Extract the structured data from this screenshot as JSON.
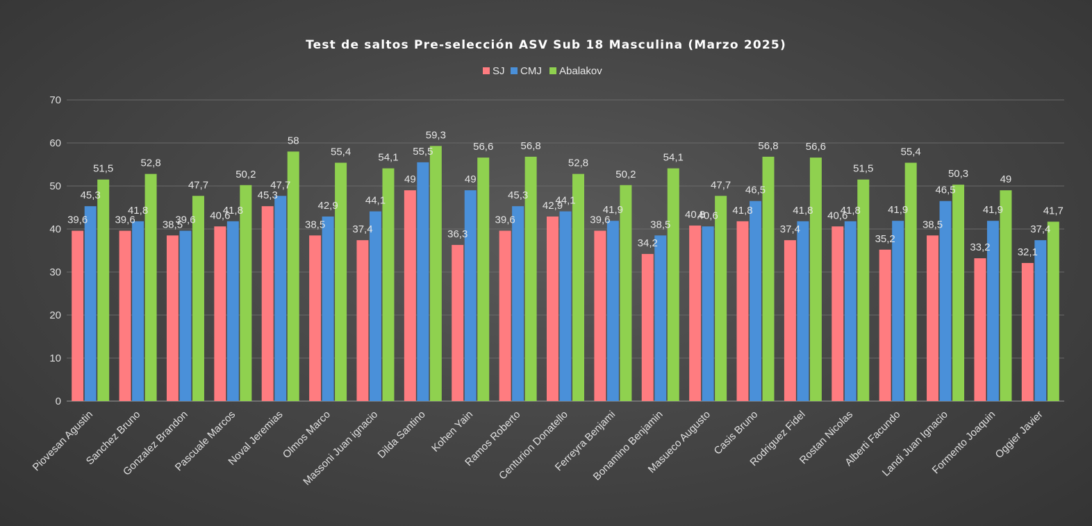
{
  "chart_data": {
    "type": "bar",
    "title": "Test de saltos Pre-selección ASV Sub 18 Masculina (Marzo 2025)",
    "xlabel": "",
    "ylabel": "",
    "ylim": [
      0,
      70
    ],
    "yticks": [
      0,
      10,
      20,
      30,
      40,
      50,
      60,
      70
    ],
    "grid": true,
    "legend_position": "top",
    "categories": [
      "Piovesan Agustin",
      "Sanchez Bruno",
      "Gonzalez Brandon",
      "Pascuale Marcos",
      "Noval Jeremias",
      "Olmos Marco",
      "Massoni Juan ignacio",
      "Dilda Santino",
      "Kohen Yain",
      "Ramos Roberto",
      "Centurion Donatello",
      "Ferreyra Benjami",
      "Bonamino Benjamin",
      "Masueco Augusto",
      "Casis Bruno",
      "Rodriguez Fidel",
      "Rostan Nicolas",
      "Alberti Facundo",
      "Landi Juan Ignacio",
      "Formento Joaquin",
      "Oggier Javier"
    ],
    "series": [
      {
        "name": "SJ",
        "color": "#ff7c80",
        "values": [
          39.6,
          39.6,
          38.5,
          40.6,
          45.3,
          38.5,
          37.4,
          49,
          36.3,
          39.6,
          42.9,
          39.6,
          34.2,
          40.8,
          41.8,
          37.4,
          40.6,
          35.2,
          38.5,
          33.2,
          32.1
        ],
        "labels": [
          "39,6",
          "39,6",
          "38,5",
          "40,6",
          "45,3",
          "38,5",
          "37,4",
          "49",
          "36,3",
          "39,6",
          "42,9",
          "39,6",
          "34,2",
          "40,8",
          "41,8",
          "37,4",
          "40,6",
          "35,2",
          "38,5",
          "33,2",
          "32,1"
        ]
      },
      {
        "name": "CMJ",
        "color": "#4a90d9",
        "values": [
          45.3,
          41.8,
          39.6,
          41.8,
          47.7,
          42.9,
          44.1,
          55.5,
          49,
          45.3,
          44.1,
          41.9,
          38.5,
          40.6,
          46.5,
          41.8,
          41.8,
          41.9,
          46.5,
          41.9,
          37.4
        ],
        "labels": [
          "45,3",
          "41,8",
          "39,6",
          "41,8",
          "47,7",
          "42,9",
          "44,1",
          "55,5",
          "49",
          "45,3",
          "44,1",
          "41,9",
          "38,5",
          "40,6",
          "46,5",
          "41,8",
          "41,8",
          "41,9",
          "46,5",
          "41,9",
          "37,4"
        ]
      },
      {
        "name": "Abalakov",
        "color": "#8fd14f",
        "values": [
          51.5,
          52.8,
          47.7,
          50.2,
          58,
          55.4,
          54.1,
          59.3,
          56.6,
          56.8,
          52.8,
          50.2,
          54.1,
          47.7,
          56.8,
          56.6,
          51.5,
          55.4,
          50.3,
          49,
          41.7
        ],
        "labels": [
          "51,5",
          "52,8",
          "47,7",
          "50,2",
          "58",
          "55,4",
          "54,1",
          "59,3",
          "56,6",
          "56,8",
          "52,8",
          "50,2",
          "54,1",
          "47,7",
          "56,8",
          "56,6",
          "51,5",
          "55,4",
          "50,3",
          "49",
          "41,7"
        ]
      }
    ]
  }
}
